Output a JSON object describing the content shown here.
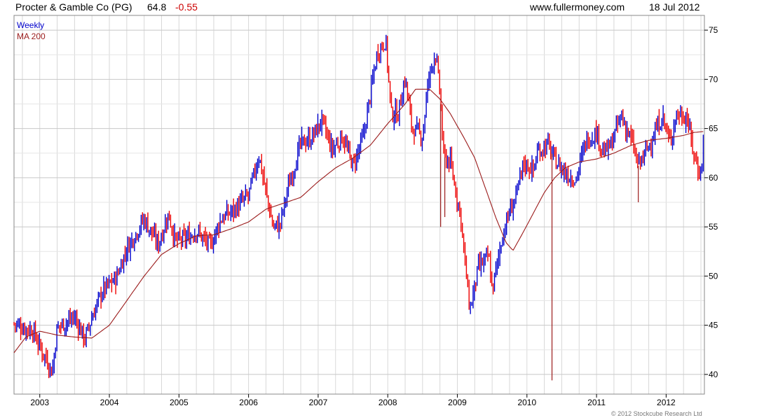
{
  "header": {
    "title": "Procter & Gamble Co (PG)",
    "price": "64.8",
    "change": "-0.55",
    "site": "www.fullermoney.com",
    "date": "18 Jul 2012"
  },
  "copyright": "© 2012 Stockcube Research Ltd",
  "colors": {
    "up": "#0000cc",
    "down": "#ee0000",
    "ma": "#9b1b1b",
    "grid": "#d8d8d8"
  },
  "chart_data": {
    "type": "line",
    "legend": [
      {
        "label": "Weekly",
        "color": "#0000cc"
      },
      {
        "label": "MA 200",
        "color": "#9b1b1b"
      }
    ],
    "legend_position": "top-left",
    "grid": true,
    "x_ticks": [
      "2003",
      "2004",
      "2005",
      "2006",
      "2007",
      "2008",
      "2009",
      "2010",
      "2011",
      "2012"
    ],
    "x_range": [
      2002.63,
      2012.55
    ],
    "y_ticks": [
      40,
      45,
      50,
      55,
      60,
      65,
      70,
      75
    ],
    "ylim": [
      38,
      76.5
    ],
    "weekly_close_anchors": [
      [
        2002.63,
        45.2
      ],
      [
        2002.75,
        44.8
      ],
      [
        2002.9,
        44.5
      ],
      [
        2003.0,
        42.8
      ],
      [
        2003.1,
        41.5
      ],
      [
        2003.18,
        40.2
      ],
      [
        2003.25,
        44.8
      ],
      [
        2003.5,
        45.8
      ],
      [
        2003.65,
        43.6
      ],
      [
        2003.75,
        45.8
      ],
      [
        2003.9,
        48.5
      ],
      [
        2004.1,
        49.8
      ],
      [
        2004.25,
        52.8
      ],
      [
        2004.5,
        55.8
      ],
      [
        2004.7,
        53.2
      ],
      [
        2004.85,
        56.3
      ],
      [
        2004.95,
        53.5
      ],
      [
        2005.1,
        53.8
      ],
      [
        2005.25,
        54.6
      ],
      [
        2005.45,
        53.0
      ],
      [
        2005.6,
        55.8
      ],
      [
        2005.8,
        56.8
      ],
      [
        2006.0,
        58.2
      ],
      [
        2006.15,
        62.3
      ],
      [
        2006.25,
        58.5
      ],
      [
        2006.35,
        55.0
      ],
      [
        2006.45,
        55.2
      ],
      [
        2006.55,
        58.5
      ],
      [
        2006.75,
        63.5
      ],
      [
        2006.9,
        64.0
      ],
      [
        2007.05,
        65.8
      ],
      [
        2007.2,
        62.8
      ],
      [
        2007.35,
        64.2
      ],
      [
        2007.5,
        61.2
      ],
      [
        2007.65,
        64.2
      ],
      [
        2007.85,
        72.8
      ],
      [
        2007.97,
        74.0
      ],
      [
        2008.05,
        66.5
      ],
      [
        2008.15,
        66.5
      ],
      [
        2008.25,
        70.2
      ],
      [
        2008.35,
        65.0
      ],
      [
        2008.5,
        64.2
      ],
      [
        2008.58,
        69.8
      ],
      [
        2008.68,
        72.8
      ],
      [
        2008.75,
        68.8
      ],
      [
        2008.8,
        62.2
      ],
      [
        2008.9,
        61.5
      ],
      [
        2009.05,
        56.0
      ],
      [
        2009.12,
        50.5
      ],
      [
        2009.18,
        46.5
      ],
      [
        2009.3,
        50.8
      ],
      [
        2009.45,
        52.0
      ],
      [
        2009.5,
        48.5
      ],
      [
        2009.65,
        54.2
      ],
      [
        2009.75,
        56.5
      ],
      [
        2009.85,
        58.2
      ],
      [
        2009.95,
        61.5
      ],
      [
        2010.1,
        60.8
      ],
      [
        2010.15,
        62.6
      ],
      [
        2010.3,
        63.4
      ],
      [
        2010.4,
        61.8
      ],
      [
        2010.55,
        60.5
      ],
      [
        2010.7,
        59.8
      ],
      [
        2010.85,
        63.8
      ],
      [
        2011.0,
        64.6
      ],
      [
        2011.1,
        62.5
      ],
      [
        2011.2,
        63.2
      ],
      [
        2011.35,
        66.3
      ],
      [
        2011.5,
        63.8
      ],
      [
        2011.6,
        61.2
      ],
      [
        2011.7,
        62.5
      ],
      [
        2011.85,
        64.8
      ],
      [
        2011.95,
        66.3
      ],
      [
        2012.05,
        63.5
      ],
      [
        2012.15,
        66.5
      ],
      [
        2012.3,
        66.2
      ],
      [
        2012.38,
        63.0
      ],
      [
        2012.45,
        61.0
      ],
      [
        2012.5,
        60.5
      ],
      [
        2012.55,
        64.8
      ]
    ],
    "ma200_anchors": [
      [
        2002.63,
        42.2
      ],
      [
        2002.8,
        43.8
      ],
      [
        2003.0,
        44.4
      ],
      [
        2003.25,
        44.0
      ],
      [
        2003.5,
        43.8
      ],
      [
        2003.75,
        43.7
      ],
      [
        2004.0,
        45.0
      ],
      [
        2004.25,
        47.5
      ],
      [
        2004.5,
        50.0
      ],
      [
        2004.75,
        52.2
      ],
      [
        2005.0,
        53.3
      ],
      [
        2005.25,
        54.1
      ],
      [
        2005.5,
        54.2
      ],
      [
        2005.75,
        54.8
      ],
      [
        2006.0,
        55.5
      ],
      [
        2006.25,
        56.8
      ],
      [
        2006.5,
        57.4
      ],
      [
        2006.75,
        58.0
      ],
      [
        2007.0,
        59.6
      ],
      [
        2007.25,
        61.0
      ],
      [
        2007.5,
        62.0
      ],
      [
        2007.75,
        63.3
      ],
      [
        2008.0,
        65.5
      ],
      [
        2008.25,
        67.5
      ],
      [
        2008.4,
        69.0
      ],
      [
        2008.6,
        69.0
      ],
      [
        2008.75,
        68.0
      ],
      [
        2008.9,
        66.5
      ],
      [
        2009.1,
        64.0
      ],
      [
        2009.25,
        62.0
      ],
      [
        2009.4,
        59.0
      ],
      [
        2009.55,
        56.0
      ],
      [
        2009.7,
        53.4
      ],
      [
        2009.8,
        52.6
      ],
      [
        2009.95,
        54.5
      ],
      [
        2010.1,
        56.5
      ],
      [
        2010.25,
        58.5
      ],
      [
        2010.4,
        60.0
      ],
      [
        2010.55,
        61.0
      ],
      [
        2010.75,
        61.6
      ],
      [
        2011.0,
        61.9
      ],
      [
        2011.25,
        62.5
      ],
      [
        2011.5,
        63.3
      ],
      [
        2011.75,
        63.8
      ],
      [
        2012.0,
        64.0
      ],
      [
        2012.25,
        64.3
      ],
      [
        2012.4,
        64.6
      ],
      [
        2012.55,
        64.7
      ]
    ],
    "outlier_lows": [
      [
        2010.36,
        39.4
      ],
      [
        2008.76,
        55.0
      ],
      [
        2008.82,
        56.0
      ],
      [
        2011.6,
        57.5
      ]
    ]
  }
}
